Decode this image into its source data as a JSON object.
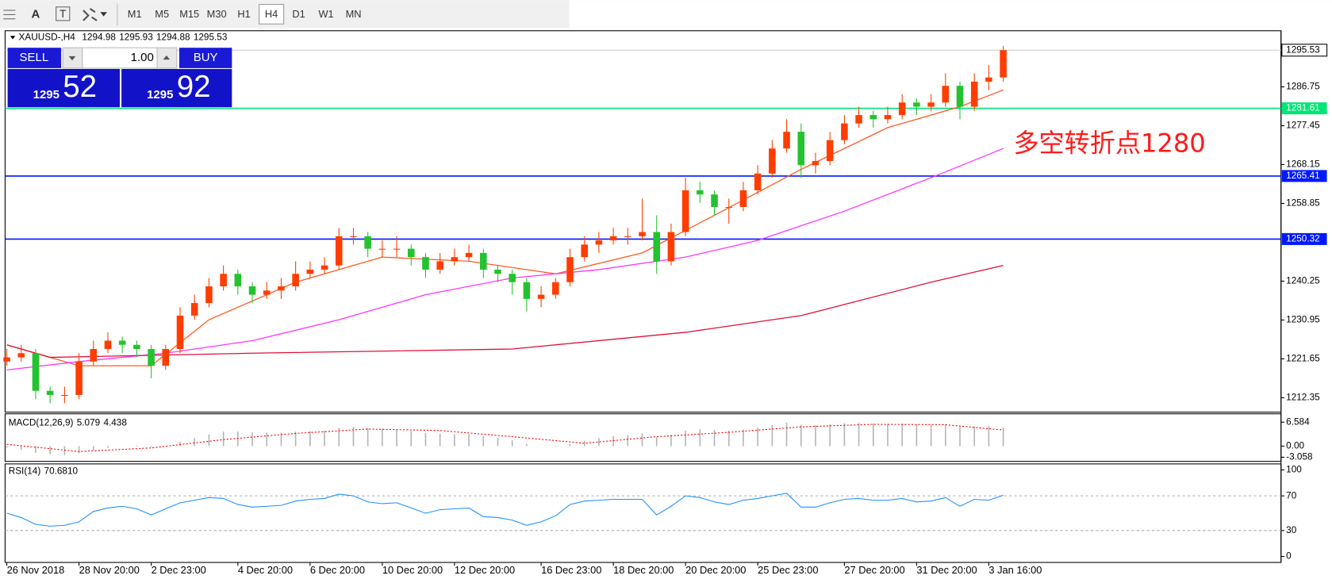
{
  "toolbar": {
    "tools": [
      "A",
      "T"
    ],
    "timeframes": [
      "M1",
      "M5",
      "M15",
      "M30",
      "H1",
      "H4",
      "D1",
      "W1",
      "MN"
    ],
    "active": "H4"
  },
  "trade_panel": {
    "sell": "SELL",
    "buy": "BUY",
    "lot": "1.00",
    "bid_prefix": "1295",
    "bid_pips": "52",
    "ask_prefix": "1295",
    "ask_pips": "92"
  },
  "chart_data": [
    {
      "type": "candlestick",
      "title": "XAUUSD-,H4",
      "header_values": [
        1294.98,
        1295.93,
        1294.88,
        1295.53
      ],
      "up_color": "#ff3d00",
      "down_color": "#22c32e",
      "categories": [
        "26 Nov 2018",
        null,
        null,
        null,
        null,
        "28 Nov 20:00",
        null,
        null,
        null,
        null,
        "2 Dec 23:00",
        null,
        null,
        null,
        null,
        null,
        "4 Dec 20:00",
        null,
        null,
        null,
        null,
        "6 Dec 20:00",
        null,
        null,
        null,
        null,
        "10 Dec 20:00",
        null,
        null,
        null,
        null,
        "12 Dec 20:00",
        null,
        null,
        null,
        null,
        null,
        "16 Dec 23:00",
        null,
        null,
        null,
        null,
        "18 Dec 20:00",
        null,
        null,
        null,
        null,
        "20 Dec 20:00",
        null,
        null,
        null,
        null,
        "25 Dec 23:00",
        null,
        null,
        null,
        null,
        null,
        "27 Dec 20:00",
        null,
        null,
        null,
        null,
        "31 Dec 20:00",
        null,
        null,
        null,
        null,
        "3 Jan 16:00",
        null
      ],
      "ohlc": [
        [
          1221,
          1224,
          1220,
          1222
        ],
        [
          1222,
          1225,
          1221,
          1223
        ],
        [
          1223,
          1224,
          1212,
          1214
        ],
        [
          1214,
          1215,
          1211,
          1213
        ],
        [
          1213,
          1215,
          1211,
          1213
        ],
        [
          1213,
          1223,
          1212,
          1221
        ],
        [
          1221,
          1226,
          1220,
          1224
        ],
        [
          1224,
          1228,
          1223,
          1226
        ],
        [
          1226,
          1227,
          1223,
          1225
        ],
        [
          1225,
          1226,
          1222,
          1224
        ],
        [
          1224,
          1225,
          1217,
          1220
        ],
        [
          1220,
          1225,
          1219,
          1224
        ],
        [
          1224,
          1234,
          1223,
          1232
        ],
        [
          1232,
          1237,
          1231,
          1235
        ],
        [
          1235,
          1241,
          1234,
          1239
        ],
        [
          1239,
          1244,
          1238,
          1242
        ],
        [
          1242,
          1243,
          1237,
          1239
        ],
        [
          1239,
          1240,
          1235,
          1237
        ],
        [
          1237,
          1240,
          1236,
          1238
        ],
        [
          1238,
          1241,
          1236,
          1239
        ],
        [
          1239,
          1245,
          1238,
          1242
        ],
        [
          1242,
          1245,
          1241,
          1243
        ],
        [
          1243,
          1246,
          1242,
          1244
        ],
        [
          1244,
          1253,
          1243,
          1251
        ],
        [
          1251,
          1253,
          1249,
          1251
        ],
        [
          1251,
          1252,
          1246,
          1248
        ],
        [
          1248,
          1250,
          1246,
          1248
        ],
        [
          1248,
          1251,
          1246,
          1248
        ],
        [
          1248,
          1249,
          1244,
          1246
        ],
        [
          1246,
          1247,
          1241,
          1243
        ],
        [
          1243,
          1247,
          1242,
          1245
        ],
        [
          1245,
          1248,
          1244,
          1246
        ],
        [
          1246,
          1249,
          1245,
          1247
        ],
        [
          1247,
          1248,
          1241,
          1243
        ],
        [
          1243,
          1244,
          1240,
          1242
        ],
        [
          1242,
          1243,
          1237,
          1240
        ],
        [
          1240,
          1241,
          1233,
          1236
        ],
        [
          1236,
          1239,
          1234,
          1237
        ],
        [
          1237,
          1241,
          1236,
          1240
        ],
        [
          1240,
          1248,
          1239,
          1246
        ],
        [
          1246,
          1251,
          1245,
          1249
        ],
        [
          1249,
          1252,
          1247,
          1250
        ],
        [
          1250,
          1253,
          1249,
          1251
        ],
        [
          1251,
          1253,
          1249,
          1251
        ],
        [
          1251,
          1260,
          1250,
          1252
        ],
        [
          1252,
          1256,
          1242,
          1245
        ],
        [
          1245,
          1254,
          1244,
          1252
        ],
        [
          1252,
          1265,
          1251,
          1262
        ],
        [
          1262,
          1264,
          1259,
          1261
        ],
        [
          1261,
          1262,
          1256,
          1258
        ],
        [
          1258,
          1260,
          1254,
          1258
        ],
        [
          1258,
          1264,
          1257,
          1262
        ],
        [
          1262,
          1268,
          1261,
          1266
        ],
        [
          1266,
          1274,
          1265,
          1272
        ],
        [
          1272,
          1279,
          1271,
          1276
        ],
        [
          1276,
          1278,
          1265,
          1268
        ],
        [
          1268,
          1271,
          1266,
          1269
        ],
        [
          1269,
          1276,
          1268,
          1274
        ],
        [
          1274,
          1280,
          1273,
          1278
        ],
        [
          1278,
          1282,
          1277,
          1280
        ],
        [
          1280,
          1281,
          1277,
          1279
        ],
        [
          1279,
          1282,
          1278,
          1280
        ],
        [
          1280,
          1285,
          1279,
          1283
        ],
        [
          1283,
          1284,
          1280,
          1282
        ],
        [
          1282,
          1285,
          1281,
          1283
        ],
        [
          1283,
          1290,
          1282,
          1287
        ],
        [
          1287,
          1288,
          1279,
          1282
        ],
        [
          1282,
          1290,
          1281,
          1288
        ],
        [
          1288,
          1292,
          1286,
          1289
        ],
        [
          1289,
          1296.5,
          1288,
          1295.53
        ]
      ],
      "moving_averages": [
        {
          "color": "#ff5a1f",
          "x": [
            0,
            5,
            10,
            14,
            20,
            26,
            32,
            38,
            44,
            49,
            55,
            61,
            66,
            69
          ],
          "values": [
            1225,
            1220,
            1220,
            1231,
            1240,
            1246,
            1245,
            1242,
            1247,
            1256,
            1267,
            1277,
            1282,
            1286
          ]
        },
        {
          "color": "#ff33ff",
          "x": [
            0,
            5,
            11,
            17,
            23,
            29,
            35,
            41,
            47,
            52,
            58,
            64,
            69
          ],
          "values": [
            1219,
            1221,
            1223,
            1226,
            1231,
            1237,
            1241,
            1243,
            1246,
            1250,
            1257,
            1265,
            1272
          ]
        },
        {
          "color": "#e0103a",
          "x": [
            0,
            3,
            17,
            35,
            47,
            55,
            64,
            69
          ],
          "values": [
            1225,
            1222,
            1223,
            1224,
            1228,
            1232,
            1240,
            1244
          ]
        }
      ],
      "levels": [
        {
          "value": 1281.61,
          "color": "#00e676"
        },
        {
          "value": 1265.41,
          "color": "#0018ff"
        },
        {
          "value": 1250.32,
          "color": "#0018ff"
        }
      ],
      "last_price": 1295.53,
      "annotation": "多空转折点1280",
      "ylim": [
        1208.9,
        1300.18
      ],
      "yticks": [
        1212.35,
        1221.65,
        1230.95,
        1240.25,
        1258.85,
        1268.15,
        1277.45,
        1286.75
      ]
    },
    {
      "type": "macd",
      "title": "MACD(12,26,9)",
      "header_values": [
        5.079,
        4.438
      ],
      "color": "#b4b4b4",
      "signal_color": "#ff0000",
      "values": [
        -0.5,
        -1,
        -1.8,
        -2.2,
        -2.5,
        -2,
        -1.2,
        -0.5,
        0,
        0.2,
        -0.3,
        0,
        1.2,
        2.2,
        3.2,
        4,
        4,
        3.8,
        3.7,
        3.7,
        4,
        4.1,
        4.2,
        5,
        5.3,
        5,
        4.8,
        4.6,
        4.2,
        3.6,
        3.4,
        3.3,
        3.3,
        2.8,
        2.2,
        1.6,
        0.6,
        0,
        -0.2,
        0.6,
        1.5,
        2.2,
        2.8,
        3.1,
        3.5,
        2.6,
        3.1,
        4.3,
        4.6,
        4.5,
        4.3,
        4.6,
        5.1,
        5.8,
        6.5,
        5.9,
        5.8,
        6,
        6.3,
        6.4,
        6.2,
        6.1,
        6.2,
        6,
        5.9,
        6,
        5.3,
        5.4,
        5.5,
        5.079
      ],
      "signal": {
        "x": [
          0,
          5,
          10,
          15,
          20,
          25,
          30,
          35,
          40,
          45,
          50,
          55,
          60,
          65,
          69
        ],
        "values": [
          0.5,
          -1.5,
          -0.5,
          1.8,
          3.5,
          4.7,
          4.3,
          2.6,
          0.8,
          2.6,
          3.8,
          5.3,
          6,
          5.9,
          4.438
        ]
      },
      "ylim": [
        -4.2,
        8.9
      ],
      "yticks": [
        6.584,
        {
          "value": 0,
          "label": "0.00"
        },
        -3.058
      ]
    },
    {
      "type": "line",
      "title": "RSI(14)",
      "header_value": {
        "value": 70.681,
        "label": "70.6810"
      },
      "color": "#1e90ff",
      "values": [
        50,
        45,
        37,
        35,
        36,
        40,
        52,
        56,
        58,
        55,
        48,
        55,
        62,
        65,
        68,
        67,
        60,
        57,
        58,
        59,
        64,
        66,
        67,
        72,
        70,
        63,
        61,
        62,
        56,
        50,
        54,
        55,
        56,
        46,
        45,
        42,
        36,
        40,
        47,
        60,
        64,
        65,
        66,
        66,
        66,
        48,
        58,
        70,
        68,
        63,
        60,
        65,
        67,
        70,
        73,
        57,
        57,
        62,
        66,
        67,
        65,
        65,
        67,
        63,
        64,
        68,
        58,
        66,
        65,
        70.681
      ],
      "levels": [
        30,
        70
      ],
      "ylim": [
        -6.9,
        106.9
      ],
      "yticks": [
        0,
        30,
        70,
        100
      ]
    }
  ]
}
